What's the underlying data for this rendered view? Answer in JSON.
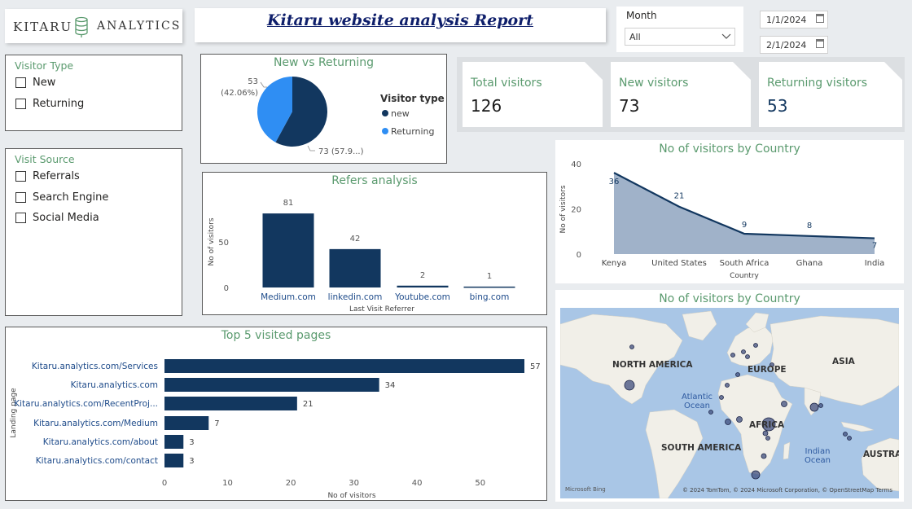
{
  "header": {
    "logo_left": "KITARU",
    "logo_right": "ANALYTICS",
    "report_title": "Kitaru website analysis Report"
  },
  "month_filter": {
    "label": "Month",
    "value": "All"
  },
  "date_range": {
    "start": "1/1/2024",
    "end": "2/1/2024"
  },
  "visitor_type_slicer": {
    "title": "Visitor Type",
    "options": [
      "New",
      "Returning"
    ]
  },
  "visit_source_slicer": {
    "title": "Visit Source",
    "options": [
      "Referrals",
      "Search Engine",
      "Social Media"
    ]
  },
  "cards": [
    {
      "label": "Total visitors",
      "value": "126"
    },
    {
      "label": "New visitors",
      "value": "73"
    },
    {
      "label": "Returning visitors",
      "value": "53"
    }
  ],
  "colors": {
    "accent_green": "#5a9a6e",
    "navy": "#12375f",
    "light_blue": "#2f8ef3",
    "area_fill": "#8fa5bf"
  },
  "chart_data": [
    {
      "type": "pie",
      "title": "New vs Returning",
      "legend_title": "Visitor type",
      "legend_placement": "right",
      "slices": [
        {
          "name": "new",
          "value": 73,
          "label": "73 (57.9...)",
          "color": "#12375f"
        },
        {
          "name": "Returning",
          "value": 53,
          "label": "53 (42.06%)",
          "label_line1": "53",
          "label_line2": "(42.06%)",
          "color": "#2f8ef3"
        }
      ]
    },
    {
      "type": "bar",
      "title": "Refers analysis",
      "xlabel": "Last Visit Referrer",
      "ylabel": "No of visitors",
      "categories": [
        "Medium.com",
        "linkedin.com",
        "Youtube.com",
        "bing.com"
      ],
      "values": [
        81,
        42,
        2,
        1
      ],
      "yticks": [
        "0",
        "50"
      ],
      "ylim": [
        0,
        90
      ]
    },
    {
      "type": "area",
      "title": "No of visitors by Country",
      "xlabel": "Country",
      "ylabel": "No of visitors",
      "categories": [
        "Kenya",
        "United States",
        "South Africa",
        "Ghana",
        "India"
      ],
      "values": [
        36,
        21,
        9,
        8,
        7
      ],
      "yticks": [
        "0",
        "20",
        "40"
      ],
      "ylim": [
        0,
        40
      ]
    },
    {
      "type": "bar",
      "orientation": "horizontal",
      "title": "Top 5 visited pages",
      "xlabel": "No of visitors",
      "ylabel": "Landing page",
      "categories": [
        "Kitaru.analytics.com/Services",
        "Kitaru.analytics.com",
        "Kitaru.analytics.com/RecentProj...",
        "Kitaru.analytics.com/Medium",
        "Kitaru.analytics.com/about",
        "Kitaru.analytics.com/contact"
      ],
      "values": [
        57,
        34,
        21,
        7,
        3,
        3
      ],
      "xticks": [
        "0",
        "10",
        "20",
        "30",
        "40",
        "50"
      ],
      "xlim": [
        0,
        57
      ]
    }
  ],
  "map": {
    "title": "No of visitors by Country",
    "labels": [
      "NORTH AMERICA",
      "EUROPE",
      "ASIA",
      "Atlantic Ocean",
      "AFRICA",
      "SOUTH AMERICA",
      "Indian Ocean",
      "AUSTRALI"
    ],
    "attribution": "© 2024 TomTom, © 2024 Microsoft Corporation, © OpenStreetMap Terms",
    "brand": "Microsoft Bing"
  }
}
